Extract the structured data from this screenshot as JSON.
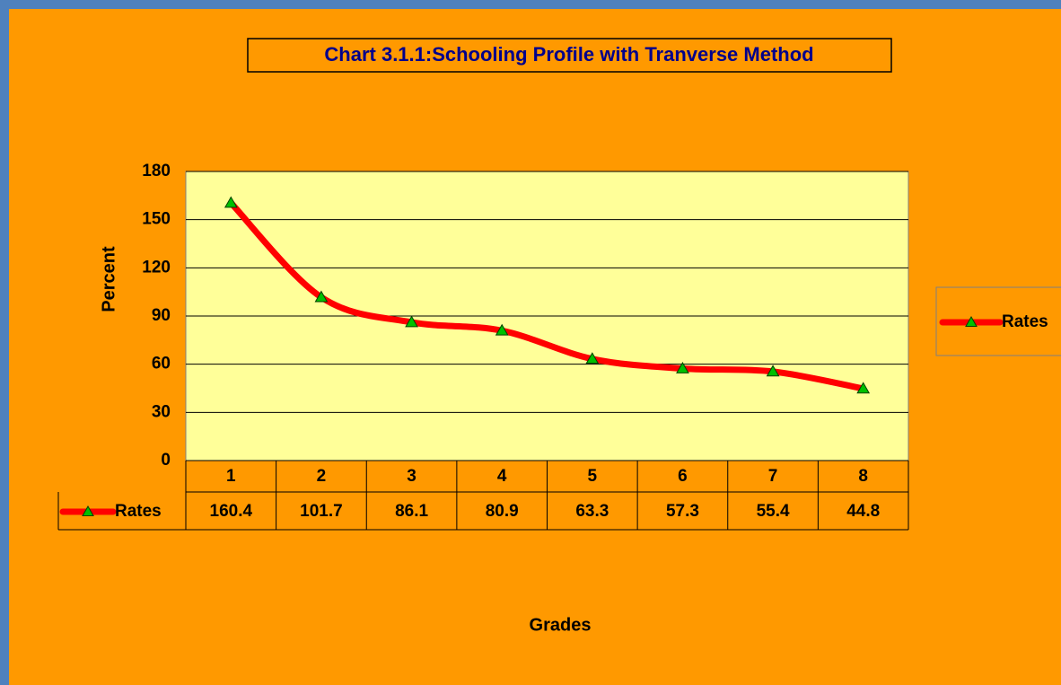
{
  "chart_data": {
    "type": "line",
    "title": "Chart 3.1.1:Schooling  Profile with Tranverse Method",
    "categories": [
      "1",
      "2",
      "3",
      "4",
      "5",
      "6",
      "7",
      "8"
    ],
    "series": [
      {
        "name": "Rates",
        "color": "#ff0000",
        "marker_color": "#00c000",
        "values": [
          160.4,
          101.7,
          86.1,
          80.9,
          63.3,
          57.3,
          55.4,
          44.8
        ]
      }
    ],
    "x_label": "Grades",
    "y_label": "Percent",
    "ylim": [
      0,
      180
    ],
    "yticks": [
      0,
      30,
      60,
      90,
      120,
      150,
      180
    ],
    "grid": true,
    "legend": "right",
    "smooth": true
  }
}
